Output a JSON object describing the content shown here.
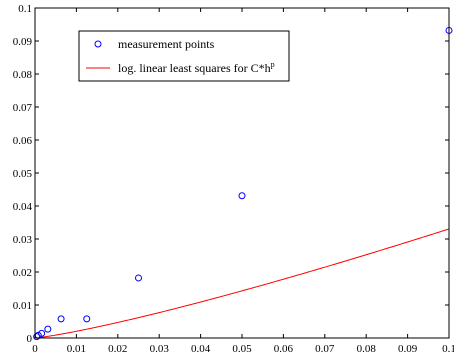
{
  "chart_data": {
    "type": "scatter",
    "title": "",
    "xlabel": "",
    "ylabel": "",
    "xlim": [
      0,
      0.1
    ],
    "ylim": [
      0,
      0.1
    ],
    "x_ticks": [
      "0",
      "0.01",
      "0.02",
      "0.03",
      "0.04",
      "0.05",
      "0.06",
      "0.07",
      "0.08",
      "0.09",
      "0.1"
    ],
    "y_ticks": [
      "0",
      "0.01",
      "0.02",
      "0.03",
      "0.04",
      "0.05",
      "0.06",
      "0.07",
      "0.08",
      "0.09",
      "0.1"
    ],
    "x_tick_values": [
      0,
      0.01,
      0.02,
      0.03,
      0.04,
      0.05,
      0.06,
      0.07,
      0.08,
      0.09,
      0.1
    ],
    "y_tick_values": [
      0,
      0.01,
      0.02,
      0.03,
      0.04,
      0.05,
      0.06,
      0.07,
      0.08,
      0.09,
      0.1
    ],
    "grid": false,
    "legend_position": "top-left",
    "series": [
      {
        "name": "measurement points",
        "kind": "markers",
        "marker": "circle-open",
        "color": "#0000ff",
        "x": [
          0.0004,
          0.0008,
          0.0016,
          0.0031,
          0.0063,
          0.0125,
          0.025,
          0.05,
          0.1
        ],
        "y": [
          0.0004,
          0.0008,
          0.0014,
          0.0027,
          0.0058,
          0.0058,
          0.0182,
          0.0431,
          0.0932
        ]
      },
      {
        "name": "log. linear least squares for C*h",
        "name_superscript": "p",
        "kind": "line",
        "color": "#ff0000",
        "C": 0.536,
        "p": 1.21
      }
    ]
  }
}
